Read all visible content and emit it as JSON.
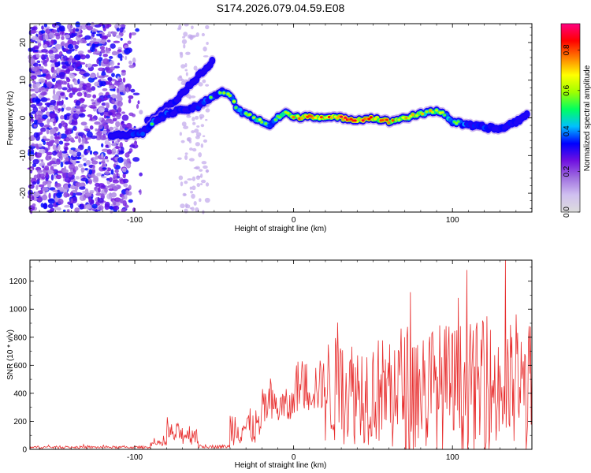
{
  "title": "S174.2026.079.04.59.E08",
  "chart_data": [
    {
      "type": "heatmap",
      "xlabel": "Height of straight line (km)",
      "ylabel": "Frequency (Hz)",
      "xlim": [
        -166,
        150
      ],
      "ylim": [
        -25,
        25
      ],
      "xticks": [
        -100,
        0,
        100
      ],
      "yticks": [
        -20,
        -10,
        0,
        10,
        20
      ],
      "colorbar": {
        "label": "Normalized spectral amplitude",
        "range": [
          0.0,
          0.93
        ],
        "ticks": [
          0.0,
          0.2,
          0.4,
          0.6,
          0.8
        ],
        "colors": [
          "#dcdcdc",
          "#d0c0f0",
          "#a070e0",
          "#7010e0",
          "#0000ff",
          "#00c0ff",
          "#00ff60",
          "#a0ff00",
          "#ffff00",
          "#ff8000",
          "#ff0000",
          "#ff0080"
        ]
      },
      "ridge_main": {
        "x": [
          -115,
          -105,
          -95,
          -88,
          -80,
          -70,
          -60,
          -52,
          -45,
          -40,
          -35,
          -30,
          -25,
          -20,
          -15,
          -10,
          -5,
          0,
          10,
          20,
          30,
          40,
          50,
          60,
          70,
          80,
          90,
          95,
          100,
          110,
          120,
          130,
          140,
          148
        ],
        "y": [
          -4.5,
          -4.5,
          -4,
          -1,
          1,
          2,
          3,
          5.5,
          7,
          6,
          2,
          1,
          0,
          -1,
          -2,
          0,
          1.5,
          0,
          0.5,
          0,
          0,
          -0.5,
          0,
          -1,
          0,
          1,
          2,
          1,
          -1,
          -2,
          -2.5,
          -3,
          -1,
          1
        ],
        "intensity": [
          0.35,
          0.4,
          0.45,
          0.5,
          0.45,
          0.4,
          0.45,
          0.5,
          0.55,
          0.6,
          0.6,
          0.55,
          0.6,
          0.65,
          0.6,
          0.6,
          0.7,
          0.75,
          0.8,
          0.8,
          0.85,
          0.85,
          0.85,
          0.8,
          0.75,
          0.7,
          0.7,
          0.65,
          0.55,
          0.5,
          0.45,
          0.4,
          0.4,
          0.35
        ]
      },
      "ridge_branch": {
        "x": [
          -92,
          -85,
          -80,
          -75,
          -70,
          -65,
          -60,
          -55,
          -50
        ],
        "y": [
          -1,
          1,
          3,
          4.5,
          6.5,
          9,
          11,
          13,
          16
        ],
        "intensity": [
          0.3,
          0.35,
          0.35,
          0.4,
          0.35,
          0.35,
          0.3,
          0.35,
          0.3
        ]
      }
    },
    {
      "type": "line",
      "xlabel": "Height of straight line (km)",
      "ylabel": "SNR (10 * v/v)",
      "xlim": [
        -166,
        150
      ],
      "ylim": [
        0,
        1350
      ],
      "xticks": [
        -100,
        0,
        100
      ],
      "yticks": [
        0,
        200,
        400,
        600,
        800,
        1000,
        1200
      ],
      "color": "#e83030",
      "segments": [
        {
          "from": -166,
          "to": -90,
          "base": 15,
          "noise": 15
        },
        {
          "from": -90,
          "to": -80,
          "base": 40,
          "noise": 40
        },
        {
          "from": -80,
          "to": -60,
          "base": 110,
          "noise": 130
        },
        {
          "from": -60,
          "to": -40,
          "base": 20,
          "noise": 20
        },
        {
          "from": -40,
          "to": -20,
          "base": 160,
          "noise": 220
        },
        {
          "from": -20,
          "to": 0,
          "base": 300,
          "noise": 220
        },
        {
          "from": 0,
          "to": 20,
          "base": 450,
          "noise": 320
        },
        {
          "from": 20,
          "to": 60,
          "base": 420,
          "noise": 650
        },
        {
          "from": 60,
          "to": 150,
          "base": 430,
          "noise": 800
        }
      ]
    }
  ]
}
